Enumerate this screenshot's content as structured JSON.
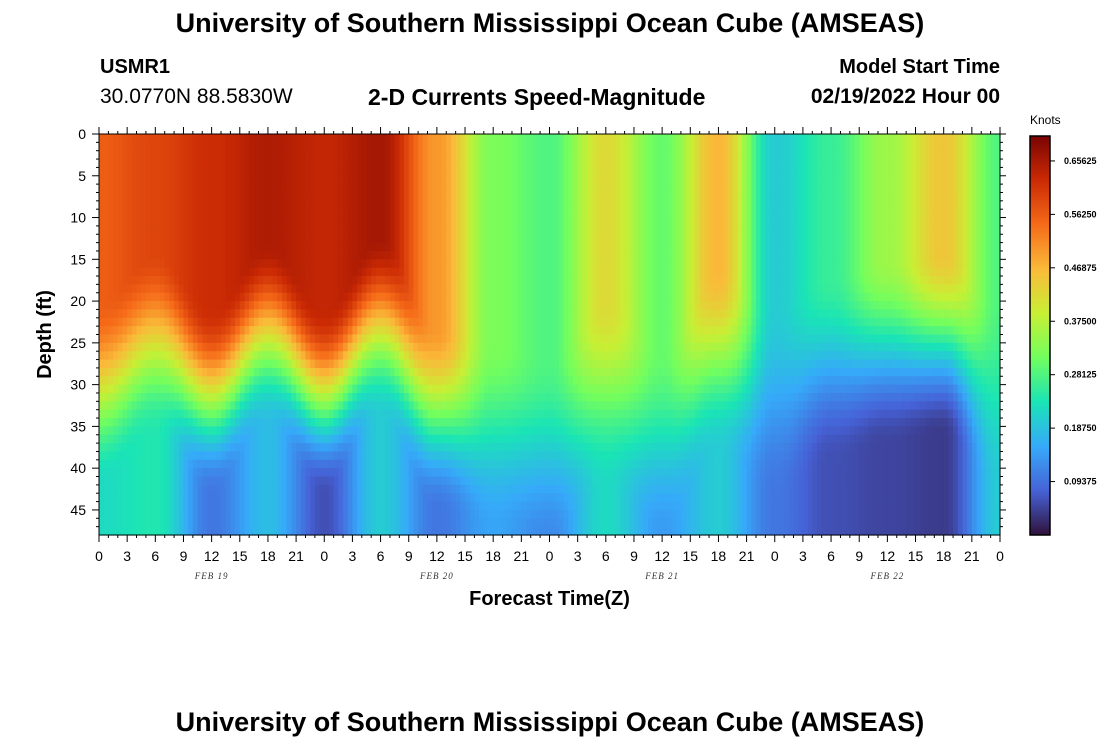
{
  "header": {
    "title": "University of Southern Mississippi Ocean Cube (AMSEAS)",
    "station_id": "USMR1",
    "coords": "30.0770N  88.5830W",
    "subtitle": "2-D Currents Speed-Magnitude",
    "model_start_label": "Model Start Time",
    "model_start_value": "02/19/2022 Hour 00"
  },
  "footer": {
    "title": "University of Southern Mississippi Ocean Cube (AMSEAS)"
  },
  "chart_data": {
    "type": "heatmap",
    "title": "2-D Currents Speed-Magnitude",
    "xlabel": "Forecast Time(Z)",
    "ylabel": "Depth (ft)",
    "x_range_hours": [
      0,
      96
    ],
    "x_tick_labels": [
      "0",
      "3",
      "6",
      "9",
      "12",
      "15",
      "18",
      "21",
      "0",
      "3",
      "6",
      "9",
      "12",
      "15",
      "18",
      "21",
      "0",
      "3",
      "6",
      "9",
      "12",
      "15",
      "18",
      "21",
      "0",
      "3",
      "6",
      "9",
      "12",
      "15",
      "18",
      "21",
      "0"
    ],
    "date_labels": [
      "FEB 19",
      "FEB 20",
      "FEB 21",
      "FEB 22"
    ],
    "y_range": [
      0,
      48
    ],
    "y_ticks": [
      "0",
      "5",
      "10",
      "15",
      "20",
      "25",
      "30",
      "35",
      "40",
      "45"
    ],
    "colorbar": {
      "unit": "Knots",
      "range": [
        0,
        0.7
      ],
      "tick_labels": [
        "0.65625",
        "0.56250",
        "0.46875",
        "0.37500",
        "0.28125",
        "0.18750",
        "0.09375"
      ]
    },
    "colormap": [
      "#30123b",
      "#4662d7",
      "#36aaf9",
      "#1ae4b6",
      "#72fe5e",
      "#c8ef34",
      "#faba39",
      "#f66b19",
      "#cb2a04",
      "#7a0403"
    ],
    "surface_speed_by_hour": [
      [
        0,
        0.56
      ],
      [
        6,
        0.59
      ],
      [
        12,
        0.62
      ],
      [
        18,
        0.65
      ],
      [
        24,
        0.63
      ],
      [
        30,
        0.66
      ],
      [
        36,
        0.5
      ],
      [
        42,
        0.32
      ],
      [
        48,
        0.28
      ],
      [
        54,
        0.42
      ],
      [
        60,
        0.3
      ],
      [
        66,
        0.47
      ],
      [
        72,
        0.2
      ],
      [
        78,
        0.26
      ],
      [
        84,
        0.35
      ],
      [
        90,
        0.45
      ],
      [
        96,
        0.28
      ]
    ],
    "mixed_layer_depth_ft_by_hour": [
      [
        0,
        28
      ],
      [
        6,
        22
      ],
      [
        12,
        29
      ],
      [
        18,
        21
      ],
      [
        24,
        29
      ],
      [
        30,
        20
      ],
      [
        36,
        31
      ],
      [
        42,
        33
      ],
      [
        48,
        35
      ],
      [
        54,
        28
      ],
      [
        60,
        34
      ],
      [
        66,
        24
      ],
      [
        72,
        29
      ],
      [
        78,
        25
      ],
      [
        84,
        23
      ],
      [
        90,
        22
      ],
      [
        96,
        28
      ]
    ],
    "near_bottom_speed_by_hour": [
      [
        0,
        0.22
      ],
      [
        6,
        0.24
      ],
      [
        12,
        0.1
      ],
      [
        18,
        0.18
      ],
      [
        24,
        0.06
      ],
      [
        30,
        0.2
      ],
      [
        36,
        0.1
      ],
      [
        42,
        0.15
      ],
      [
        48,
        0.12
      ],
      [
        54,
        0.22
      ],
      [
        60,
        0.14
      ],
      [
        66,
        0.2
      ],
      [
        72,
        0.1
      ],
      [
        78,
        0.06
      ],
      [
        84,
        0.05
      ],
      [
        90,
        0.04
      ],
      [
        96,
        0.2
      ]
    ]
  }
}
